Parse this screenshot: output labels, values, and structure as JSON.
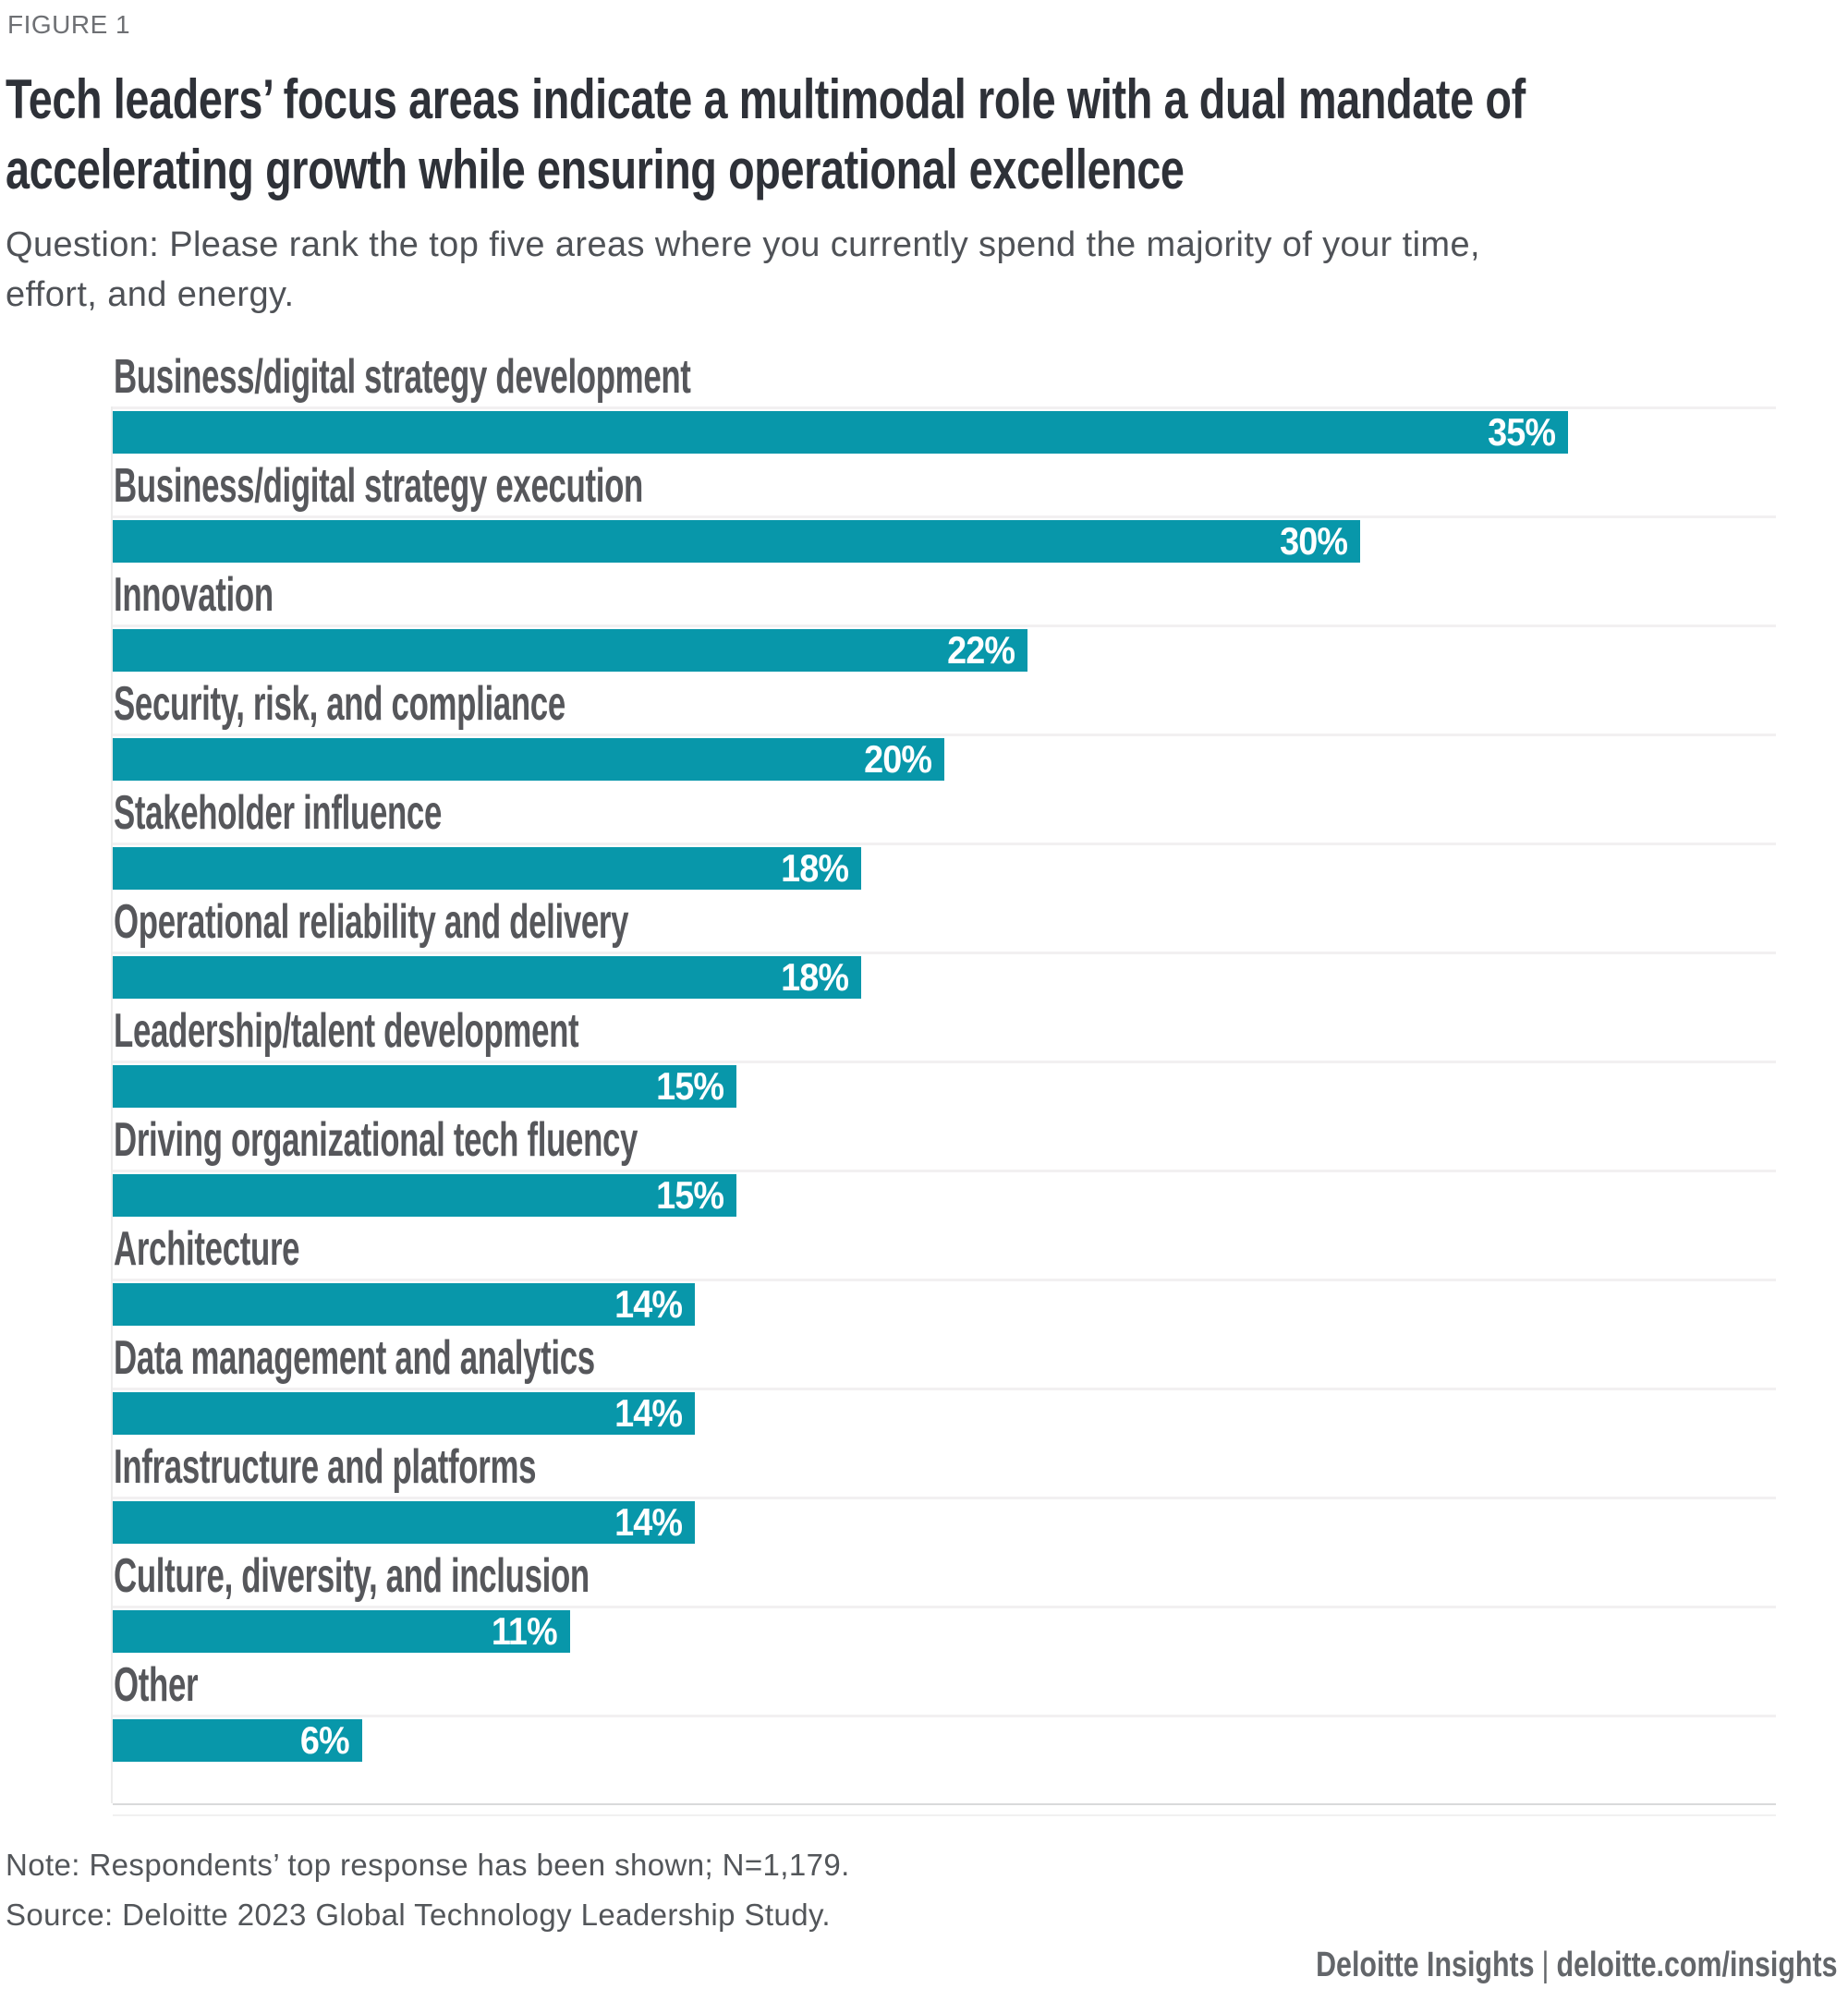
{
  "figure_label": "FIGURE 1",
  "title": "Tech leaders’ focus areas indicate a multimodal role with a dual mandate of\naccelerating growth while ensuring operational excellence",
  "question": "Question: Please rank the top five areas where you currently spend the majority of your time,\neffort, and energy.",
  "chart_data": {
    "type": "bar",
    "orientation": "horizontal",
    "categories": [
      "Business/digital strategy development",
      "Business/digital strategy execution",
      "Innovation",
      "Security, risk, and compliance",
      "Stakeholder influence",
      "Operational reliability and delivery",
      "Leadership/talent development",
      "Driving organizational tech fluency",
      "Architecture",
      "Data management and analytics",
      "Infrastructure and platforms",
      "Culture, diversity, and inclusion",
      "Other"
    ],
    "values": [
      35,
      30,
      22,
      20,
      18,
      18,
      15,
      15,
      14,
      14,
      14,
      11,
      6
    ],
    "value_suffix": "%",
    "xlim": [
      0,
      40
    ],
    "bar_color": "#0897AA",
    "value_label_color": "#FFFFFF",
    "category_label_color": "#56575B",
    "gridlines": "light horizontal line above each bar",
    "legend": "none"
  },
  "note": "Note: Respondents’ top response has been shown; N=1,179.",
  "source": "Source: Deloitte 2023 Global Technology Leadership Study.",
  "footer": {
    "brand": "Deloitte Insights",
    "separator": "|",
    "url": "deloitte.com/insights"
  }
}
